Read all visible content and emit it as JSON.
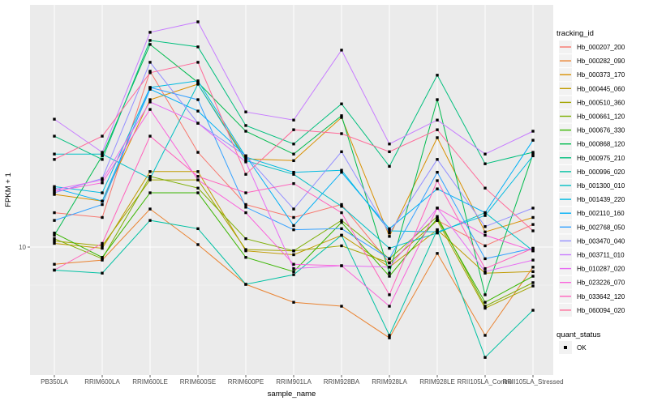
{
  "figure": {
    "background": "#FFFFFF",
    "panel_bg": "#EBEBEB",
    "grid_color": "#FFFFFF",
    "tick_color": "#333333",
    "tick_label_color": "#4D4D4D",
    "title_color": "#000000",
    "legend_key_bg": "#F2F2F2"
  },
  "chart_data": {
    "type": "line",
    "title": "",
    "xlabel": "sample_name",
    "ylabel": "FPKM + 1",
    "y_scale": "log10",
    "y_tick_labels": [
      "10"
    ],
    "y_tick_values": [
      10
    ],
    "ylim": [
      3.6,
      69
    ],
    "grid": true,
    "point_shape": "filled-square",
    "point_color": "#000000",
    "categories": [
      "PB350LA",
      "RRIM600LA",
      "RRIM600LE",
      "RRIM600SE",
      "RRIM600PE",
      "RRIM901LA",
      "RRIM928BA",
      "RRIM928LA",
      "RRIM928LE",
      "RRII105LA_Control",
      "RRII105LA_Stressed"
    ],
    "series": [
      {
        "name": "Hb_000207_200",
        "color": "#F8766D",
        "values": [
          13.2,
          12.7,
          41.4,
          21.5,
          14.1,
          12.7,
          14.1,
          8.8,
          12.4,
          10.1,
          12.0
        ]
      },
      {
        "name": "Hb_000282_090",
        "color": "#EA8331",
        "values": [
          8.7,
          9.0,
          13.6,
          10.2,
          7.4,
          6.4,
          6.2,
          4.8,
          9.5,
          4.9,
          8.5
        ]
      },
      {
        "name": "Hb_000373_170",
        "color": "#D89000",
        "values": [
          15.3,
          14.5,
          32.9,
          37.3,
          20.4,
          20.1,
          28.5,
          10.9,
          24.2,
          11.3,
          12.7
        ]
      },
      {
        "name": "Hb_000445_060",
        "color": "#C09B00",
        "values": [
          10.3,
          9.9,
          18.4,
          18.4,
          9.7,
          9.4,
          11.0,
          8.5,
          11.5,
          8.1,
          8.2
        ]
      },
      {
        "name": "Hb_000510_360",
        "color": "#A3A500",
        "values": [
          10.5,
          10.1,
          17.2,
          17.2,
          9.8,
          9.7,
          10.1,
          8.8,
          12.4,
          6.1,
          7.3
        ]
      },
      {
        "name": "Hb_000661_120",
        "color": "#7CAE00",
        "values": [
          10.7,
          9.1,
          17.7,
          16.1,
          10.7,
          9.7,
          12.4,
          9.1,
          12.8,
          6.2,
          7.5
        ]
      },
      {
        "name": "Hb_000676_330",
        "color": "#39B600",
        "values": [
          11.2,
          9.2,
          15.5,
          15.5,
          9.2,
          8.2,
          12.2,
          7.9,
          12.6,
          6.4,
          7.9
        ]
      },
      {
        "name": "Hb_000868_120",
        "color": "#00BB4E",
        "values": [
          11.0,
          20.9,
          51.4,
          37.8,
          25.5,
          21.2,
          28.9,
          8.1,
          32.9,
          6.8,
          21.2
        ]
      },
      {
        "name": "Hb_000975_210",
        "color": "#00BF7D",
        "values": [
          24.5,
          20.3,
          53.1,
          50.4,
          26.7,
          23.0,
          31.8,
          19.2,
          40.1,
          19.6,
          21.5
        ]
      },
      {
        "name": "Hb_000996_020",
        "color": "#00C1A3",
        "values": [
          8.3,
          8.1,
          12.4,
          11.6,
          7.4,
          8.0,
          11.0,
          4.9,
          11.5,
          4.1,
          6.0
        ]
      },
      {
        "name": "Hb_001300_010",
        "color": "#00BFC4",
        "values": [
          21.2,
          21.2,
          17.4,
          37.3,
          20.1,
          18.0,
          13.9,
          9.9,
          11.2,
          13.2,
          9.7
        ]
      },
      {
        "name": "Hb_001439_220",
        "color": "#00BAE0",
        "values": [
          16.3,
          15.5,
          36.3,
          38.3,
          20.7,
          18.3,
          18.6,
          11.4,
          11.3,
          12.9,
          20.9
        ]
      },
      {
        "name": "Hb_002110_160",
        "color": "#00B0F6",
        "values": [
          16.1,
          14.5,
          35.8,
          30.0,
          20.9,
          11.9,
          18.3,
          11.6,
          16.0,
          13.2,
          23.7
        ]
      },
      {
        "name": "Hb_002768_050",
        "color": "#35A2FF",
        "values": [
          12.4,
          14.1,
          36.3,
          32.9,
          13.8,
          11.5,
          11.6,
          9.1,
          18.3,
          9.1,
          9.9
        ]
      },
      {
        "name": "Hb_003470_040",
        "color": "#9590FF",
        "values": [
          15.5,
          17.4,
          44.5,
          27.2,
          20.9,
          13.6,
          21.6,
          11.2,
          20.3,
          11.8,
          13.7
        ]
      },
      {
        "name": "Hb_003711_010",
        "color": "#C77CFF",
        "values": [
          28.1,
          21.5,
          56.7,
          61.7,
          29.8,
          27.9,
          49.1,
          23.0,
          27.9,
          21.2,
          25.5
        ]
      },
      {
        "name": "Hb_010287_020",
        "color": "#E76BF3",
        "values": [
          15.9,
          17.2,
          32.3,
          27.2,
          19.9,
          8.4,
          8.6,
          8.5,
          13.7,
          8.2,
          9.0
        ]
      },
      {
        "name": "Hb_023226_070",
        "color": "#FA62DB",
        "values": [
          15.7,
          16.8,
          30.4,
          17.2,
          13.2,
          8.7,
          8.6,
          6.2,
          13.7,
          11.0,
          9.7
        ]
      },
      {
        "name": "Hb_033642_120",
        "color": "#FF62BC",
        "values": [
          8.3,
          10.3,
          24.5,
          17.7,
          15.5,
          16.7,
          13.2,
          6.8,
          17.1,
          8.4,
          9.9
        ]
      },
      {
        "name": "Hb_060094_020",
        "color": "#FF6A98",
        "values": [
          20.3,
          24.5,
          40.9,
          44.5,
          18.0,
          25.8,
          25.0,
          21.6,
          25.8,
          16.1,
          11.4
        ]
      }
    ]
  },
  "legends": [
    {
      "title": "tracking_id",
      "source": "series"
    },
    {
      "title": "quant_status",
      "items": [
        {
          "label": "OK",
          "swatch": "black-square"
        }
      ]
    }
  ]
}
